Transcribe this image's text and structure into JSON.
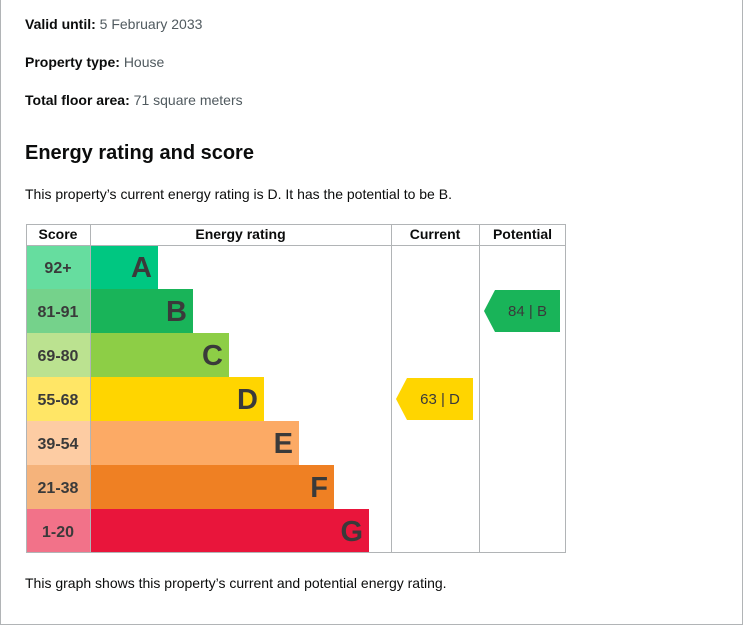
{
  "details": {
    "valid_until": {
      "label": "Valid until:",
      "value": "5 February 2033"
    },
    "property_type": {
      "label": "Property type:",
      "value": "House"
    },
    "floor_area": {
      "label": "Total floor area:",
      "value": "71 square meters"
    }
  },
  "section_title": "Energy rating and score",
  "intro": "This property’s current energy rating is D. It has the potential to be B.",
  "caption": "This graph shows this property’s current and potential energy rating.",
  "chart_data": {
    "type": "bar",
    "headers": {
      "score": "Score",
      "rating": "Energy rating",
      "current": "Current",
      "potential": "Potential"
    },
    "bands": [
      {
        "letter": "A",
        "score": "92+",
        "color": "#00c781",
        "score_bg": "#66dd9f"
      },
      {
        "letter": "B",
        "score": "81-91",
        "color": "#19b459",
        "score_bg": "#75d28b"
      },
      {
        "letter": "C",
        "score": "69-80",
        "color": "#8dce46",
        "score_bg": "#bbe290"
      },
      {
        "letter": "D",
        "score": "55-68",
        "color": "#ffd500",
        "score_bg": "#ffe666"
      },
      {
        "letter": "E",
        "score": "39-54",
        "color": "#fcaa65",
        "score_bg": "#fdcca3"
      },
      {
        "letter": "F",
        "score": "21-38",
        "color": "#ef8023",
        "score_bg": "#f5b37b"
      },
      {
        "letter": "G",
        "score": "1-20",
        "color": "#e9153b",
        "score_bg": "#f27289"
      }
    ],
    "current": {
      "score": 63,
      "letter": "D",
      "label": "63 | D"
    },
    "potential": {
      "score": 84,
      "letter": "B",
      "label": "84 | B"
    }
  }
}
